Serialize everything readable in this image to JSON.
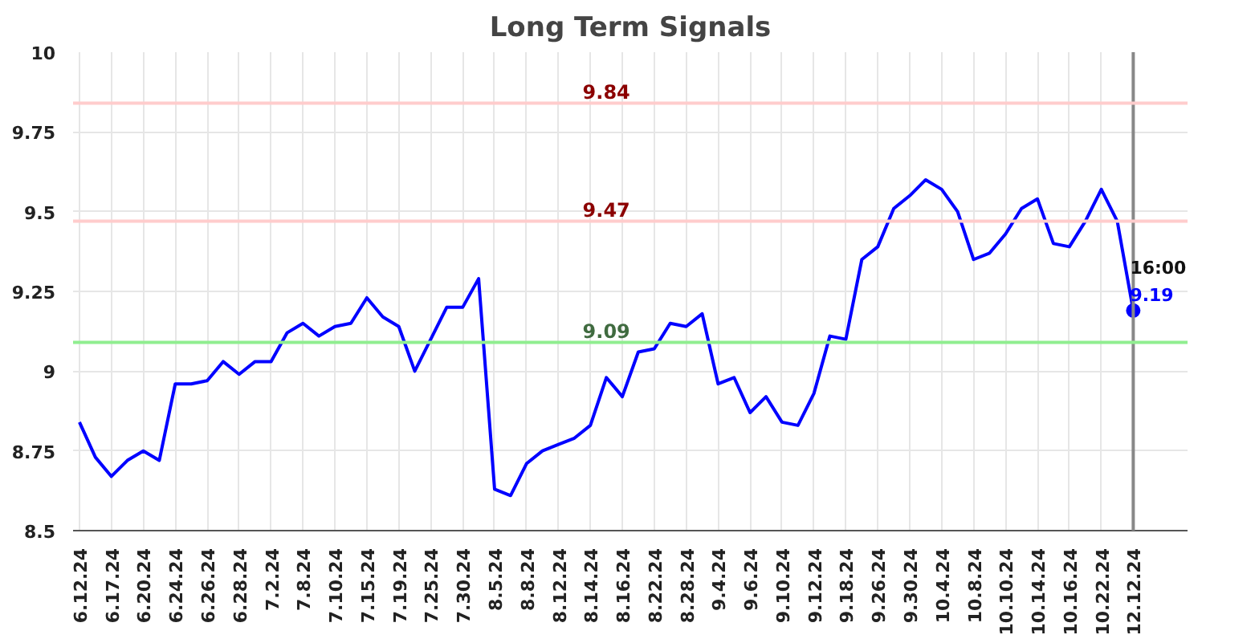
{
  "chart_data": {
    "type": "line",
    "title": "Long Term Signals",
    "categories": [
      "6.12.24",
      null,
      "6.17.24",
      null,
      "6.20.24",
      null,
      "6.24.24",
      null,
      "6.26.24",
      null,
      "6.28.24",
      null,
      "7.2.24",
      null,
      "7.8.24",
      null,
      "7.10.24",
      null,
      "7.15.24",
      null,
      "7.19.24",
      null,
      "7.25.24",
      null,
      "7.30.24",
      null,
      "8.5.24",
      null,
      "8.8.24",
      null,
      "8.12.24",
      null,
      "8.14.24",
      null,
      "8.16.24",
      null,
      "8.22.24",
      null,
      "8.28.24",
      null,
      "9.4.24",
      null,
      "9.6.24",
      null,
      "9.10.24",
      null,
      "9.12.24",
      null,
      "9.18.24",
      null,
      "9.26.24",
      null,
      "9.30.24",
      null,
      "10.4.24",
      null,
      "10.8.24",
      null,
      "10.10.24",
      null,
      "10.14.24",
      null,
      "10.16.24",
      null,
      "10.22.24",
      null,
      "12.12.24"
    ],
    "series": [
      {
        "color": "#0000ff",
        "values": [
          8.84,
          8.73,
          8.67,
          8.72,
          8.75,
          8.72,
          8.96,
          8.96,
          8.97,
          9.03,
          8.99,
          9.03,
          9.03,
          9.12,
          9.15,
          9.11,
          9.14,
          9.15,
          9.23,
          9.17,
          9.14,
          9.0,
          9.1,
          9.2,
          9.2,
          9.29,
          8.63,
          8.61,
          8.71,
          8.75,
          8.77,
          8.79,
          8.83,
          8.98,
          8.92,
          9.06,
          9.07,
          9.15,
          9.14,
          9.18,
          8.96,
          8.98,
          8.87,
          8.92,
          8.84,
          8.83,
          8.93,
          9.11,
          9.1,
          9.35,
          9.39,
          9.51,
          9.55,
          9.6,
          9.57,
          9.5,
          9.35,
          9.37,
          9.43,
          9.51,
          9.54,
          9.4,
          9.39,
          9.47,
          9.57,
          9.47,
          9.19
        ],
        "value_labels": [
          null,
          null,
          null,
          null,
          null,
          null,
          null,
          null,
          null,
          null,
          null,
          null,
          null,
          null,
          null,
          null,
          null,
          null,
          null,
          null,
          null,
          null,
          null,
          null,
          null,
          null,
          null,
          null,
          null,
          null,
          null,
          null,
          null,
          null,
          null,
          null,
          null,
          null,
          null,
          null,
          null,
          null,
          null,
          null,
          null,
          null,
          null,
          null,
          null,
          null,
          null,
          null,
          null,
          null,
          null,
          null,
          null,
          null,
          null,
          null,
          null,
          null,
          null,
          null,
          null,
          null,
          "9.19"
        ]
      }
    ],
    "ylim": [
      8.5,
      10
    ],
    "yticks": [
      8.5,
      8.75,
      9,
      9.25,
      9.5,
      9.75,
      10
    ],
    "ref_lines": [
      {
        "axis": "x",
        "value": "12.12.24",
        "color": "#888888"
      },
      {
        "axis": "y",
        "value": 9.84,
        "label": "9.84",
        "color": "#ffcccc"
      },
      {
        "axis": "y",
        "value": 9.47,
        "label": "9.47",
        "color": "#ffcccc"
      },
      {
        "axis": "y",
        "value": 9.09,
        "label": "9.09",
        "color": "#90ee90"
      }
    ],
    "annotations": [
      {
        "text": "16:00",
        "x": "12.12.24",
        "y": 9.19
      }
    ],
    "grid": true,
    "line_style": "solid"
  }
}
